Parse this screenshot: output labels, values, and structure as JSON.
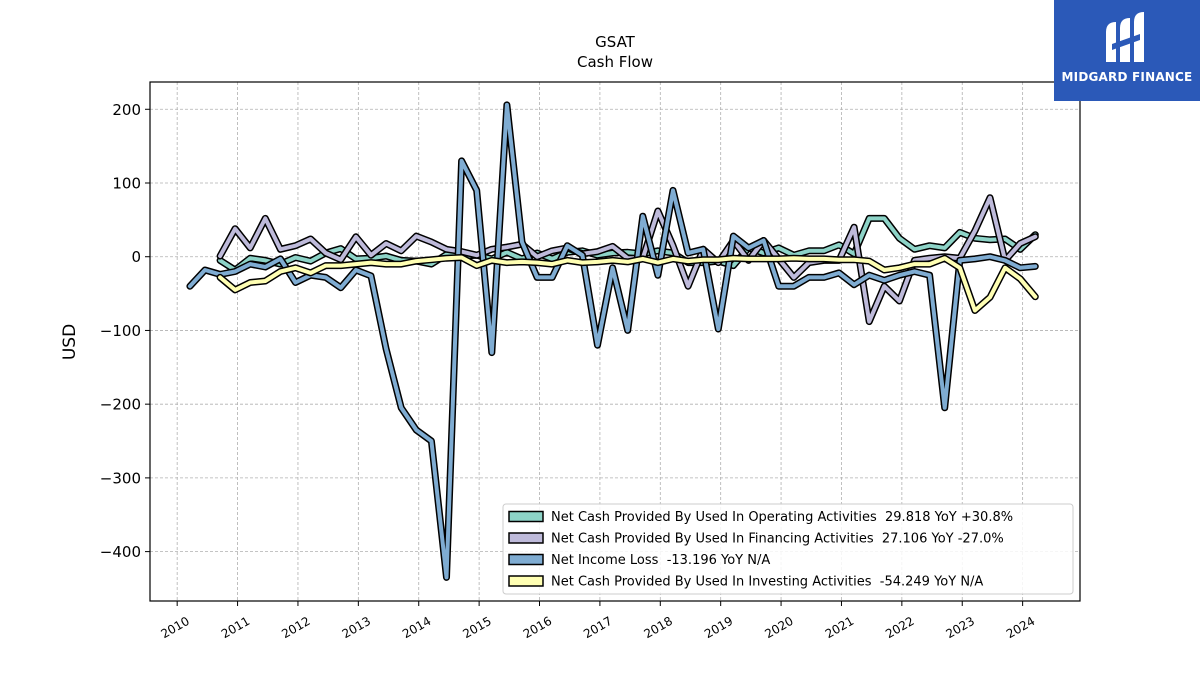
{
  "brand": {
    "name": "MIDGARD FINANCE",
    "colors": {
      "logo_bg": "#2b59b8",
      "logo_fg": "#ffffff"
    }
  },
  "chart_data": {
    "type": "line",
    "title": "GSAT",
    "subtitle": "Cash Flow",
    "xlabel": "",
    "ylabel": "USD",
    "xlim": [
      2009.55,
      2024.95
    ],
    "ylim": [
      -467,
      237
    ],
    "yticks": [
      200,
      100,
      0,
      -100,
      -200,
      -300,
      -400
    ],
    "ytick_labels": [
      "200",
      "100",
      "0",
      "−100",
      "−200",
      "−300",
      "−400"
    ],
    "xticks": [
      2010,
      2011,
      2012,
      2013,
      2014,
      2015,
      2016,
      2017,
      2018,
      2019,
      2020,
      2021,
      2022,
      2023,
      2024
    ],
    "xtick_labels": [
      "2010",
      "2011",
      "2012",
      "2013",
      "2014",
      "2015",
      "2016",
      "2017",
      "2018",
      "2019",
      "2020",
      "2021",
      "2022",
      "2023",
      "2024"
    ],
    "grid": true,
    "legend": {
      "position": "lower-right"
    },
    "series": [
      {
        "name": "Net Cash Provided By Used In Operating Activities  29.818 YoY +30.8%",
        "color": "#8dd3c7",
        "points": [
          [
            2010.71,
            -5
          ],
          [
            2010.96,
            -18
          ],
          [
            2011.21,
            -2
          ],
          [
            2011.46,
            -5
          ],
          [
            2011.71,
            -10
          ],
          [
            2011.96,
            -1
          ],
          [
            2012.21,
            -6
          ],
          [
            2012.46,
            5
          ],
          [
            2012.71,
            11
          ],
          [
            2012.96,
            -3
          ],
          [
            2013.21,
            -2
          ],
          [
            2013.46,
            1
          ],
          [
            2013.71,
            -5
          ],
          [
            2013.96,
            -6
          ],
          [
            2014.21,
            -10
          ],
          [
            2014.46,
            3
          ],
          [
            2014.71,
            1
          ],
          [
            2014.96,
            2
          ],
          [
            2015.21,
            -3
          ],
          [
            2015.46,
            6
          ],
          [
            2015.71,
            -3
          ],
          [
            2015.96,
            5
          ],
          [
            2016.21,
            -3
          ],
          [
            2016.46,
            6
          ],
          [
            2016.71,
            8
          ],
          [
            2016.96,
            2
          ],
          [
            2017.21,
            5
          ],
          [
            2017.46,
            6
          ],
          [
            2017.71,
            4
          ],
          [
            2017.96,
            8
          ],
          [
            2018.21,
            5
          ],
          [
            2018.46,
            -8
          ],
          [
            2018.71,
            -8
          ],
          [
            2018.96,
            -6
          ],
          [
            2019.21,
            -12
          ],
          [
            2019.46,
            12
          ],
          [
            2019.71,
            5
          ],
          [
            2019.96,
            12
          ],
          [
            2020.21,
            2
          ],
          [
            2020.46,
            8
          ],
          [
            2020.71,
            8
          ],
          [
            2020.96,
            16
          ],
          [
            2021.21,
            4
          ],
          [
            2021.46,
            52
          ],
          [
            2021.71,
            52
          ],
          [
            2021.96,
            25
          ],
          [
            2022.21,
            10
          ],
          [
            2022.46,
            15
          ],
          [
            2022.71,
            12
          ],
          [
            2022.96,
            33
          ],
          [
            2023.21,
            25
          ],
          [
            2023.46,
            23
          ],
          [
            2023.71,
            24
          ],
          [
            2023.96,
            10
          ],
          [
            2024.21,
            29.818
          ]
        ]
      },
      {
        "name": "Net Cash Provided By Used In Financing Activities  27.106 YoY -27.0%",
        "color": "#bebada",
        "points": [
          [
            2010.71,
            1
          ],
          [
            2010.96,
            38
          ],
          [
            2011.21,
            12
          ],
          [
            2011.46,
            52
          ],
          [
            2011.71,
            10
          ],
          [
            2011.96,
            15
          ],
          [
            2012.21,
            24
          ],
          [
            2012.46,
            5
          ],
          [
            2012.71,
            -4
          ],
          [
            2012.96,
            27
          ],
          [
            2013.21,
            2
          ],
          [
            2013.46,
            18
          ],
          [
            2013.71,
            8
          ],
          [
            2013.96,
            28
          ],
          [
            2014.21,
            20
          ],
          [
            2014.46,
            10
          ],
          [
            2014.71,
            7
          ],
          [
            2014.96,
            2
          ],
          [
            2015.21,
            10
          ],
          [
            2015.46,
            13
          ],
          [
            2015.71,
            17
          ],
          [
            2015.96,
            0
          ],
          [
            2016.21,
            8
          ],
          [
            2016.46,
            12
          ],
          [
            2016.71,
            4
          ],
          [
            2016.96,
            7
          ],
          [
            2017.21,
            14
          ],
          [
            2017.46,
            -2
          ],
          [
            2017.71,
            -2
          ],
          [
            2017.96,
            62
          ],
          [
            2018.21,
            15
          ],
          [
            2018.46,
            -40
          ],
          [
            2018.71,
            10
          ],
          [
            2018.96,
            -8
          ],
          [
            2019.21,
            22
          ],
          [
            2019.46,
            -5
          ],
          [
            2019.71,
            22
          ],
          [
            2019.96,
            -3
          ],
          [
            2020.21,
            -28
          ],
          [
            2020.46,
            -8
          ],
          [
            2020.71,
            -5
          ],
          [
            2020.96,
            -5
          ],
          [
            2021.21,
            40
          ],
          [
            2021.46,
            -88
          ],
          [
            2021.71,
            -40
          ],
          [
            2021.96,
            -60
          ],
          [
            2022.21,
            -5
          ],
          [
            2022.46,
            -2
          ],
          [
            2022.71,
            0
          ],
          [
            2022.96,
            -2
          ],
          [
            2023.21,
            35
          ],
          [
            2023.46,
            80
          ],
          [
            2023.71,
            -5
          ],
          [
            2023.96,
            18
          ],
          [
            2024.21,
            27.106
          ]
        ]
      },
      {
        "name": "Net Income Loss  -13.196 YoY N/A",
        "color": "#7facd2",
        "points": [
          [
            2010.21,
            -40
          ],
          [
            2010.46,
            -18
          ],
          [
            2010.71,
            -24
          ],
          [
            2010.96,
            -20
          ],
          [
            2011.21,
            -10
          ],
          [
            2011.46,
            -14
          ],
          [
            2011.71,
            -3
          ],
          [
            2011.96,
            -35
          ],
          [
            2012.21,
            -25
          ],
          [
            2012.46,
            -28
          ],
          [
            2012.71,
            -42
          ],
          [
            2012.96,
            -18
          ],
          [
            2013.21,
            -26
          ],
          [
            2013.46,
            -125
          ],
          [
            2013.71,
            -205
          ],
          [
            2013.96,
            -235
          ],
          [
            2014.21,
            -250
          ],
          [
            2014.46,
            -435
          ],
          [
            2014.71,
            130
          ],
          [
            2014.96,
            90
          ],
          [
            2015.21,
            -130
          ],
          [
            2015.46,
            206
          ],
          [
            2015.71,
            20
          ],
          [
            2015.96,
            -28
          ],
          [
            2016.21,
            -28
          ],
          [
            2016.46,
            15
          ],
          [
            2016.71,
            2
          ],
          [
            2016.96,
            -120
          ],
          [
            2017.21,
            -15
          ],
          [
            2017.46,
            -100
          ],
          [
            2017.71,
            55
          ],
          [
            2017.96,
            -25
          ],
          [
            2018.21,
            90
          ],
          [
            2018.46,
            5
          ],
          [
            2018.71,
            10
          ],
          [
            2018.96,
            -98
          ],
          [
            2019.21,
            28
          ],
          [
            2019.46,
            12
          ],
          [
            2019.71,
            22
          ],
          [
            2019.96,
            -40
          ],
          [
            2020.21,
            -40
          ],
          [
            2020.46,
            -28
          ],
          [
            2020.71,
            -28
          ],
          [
            2020.96,
            -22
          ],
          [
            2021.21,
            -38
          ],
          [
            2021.46,
            -25
          ],
          [
            2021.71,
            -32
          ],
          [
            2021.96,
            -25
          ],
          [
            2022.21,
            -20
          ],
          [
            2022.46,
            -25
          ],
          [
            2022.71,
            -205
          ],
          [
            2022.96,
            -5
          ],
          [
            2023.21,
            -3
          ],
          [
            2023.46,
            0
          ],
          [
            2023.71,
            -5
          ],
          [
            2023.96,
            -15
          ],
          [
            2024.21,
            -13.196
          ]
        ]
      },
      {
        "name": "Net Cash Provided By Used In Investing Activities  -54.249 YoY N/A",
        "color": "#ffffb3",
        "points": [
          [
            2010.71,
            -28
          ],
          [
            2010.96,
            -45
          ],
          [
            2011.21,
            -35
          ],
          [
            2011.46,
            -33
          ],
          [
            2011.71,
            -20
          ],
          [
            2011.96,
            -15
          ],
          [
            2012.21,
            -22
          ],
          [
            2012.46,
            -12
          ],
          [
            2012.71,
            -12
          ],
          [
            2012.96,
            -10
          ],
          [
            2013.21,
            -8
          ],
          [
            2013.46,
            -10
          ],
          [
            2013.71,
            -10
          ],
          [
            2013.96,
            -6
          ],
          [
            2014.21,
            -4
          ],
          [
            2014.46,
            -2
          ],
          [
            2014.71,
            -1
          ],
          [
            2014.96,
            -12
          ],
          [
            2015.21,
            -5
          ],
          [
            2015.46,
            -8
          ],
          [
            2015.71,
            -7
          ],
          [
            2015.96,
            -8
          ],
          [
            2016.21,
            -10
          ],
          [
            2016.46,
            -5
          ],
          [
            2016.71,
            -8
          ],
          [
            2016.96,
            -7
          ],
          [
            2017.21,
            -5
          ],
          [
            2017.46,
            -7
          ],
          [
            2017.71,
            -3
          ],
          [
            2017.96,
            -8
          ],
          [
            2018.21,
            -3
          ],
          [
            2018.46,
            -6
          ],
          [
            2018.71,
            -4
          ],
          [
            2018.96,
            -4
          ],
          [
            2019.21,
            -2
          ],
          [
            2019.46,
            -3
          ],
          [
            2019.71,
            -3
          ],
          [
            2019.96,
            -3
          ],
          [
            2020.21,
            -2
          ],
          [
            2020.46,
            -3
          ],
          [
            2020.71,
            -3
          ],
          [
            2020.96,
            -4
          ],
          [
            2021.21,
            -4
          ],
          [
            2021.46,
            -6
          ],
          [
            2021.71,
            -18
          ],
          [
            2021.96,
            -15
          ],
          [
            2022.21,
            -10
          ],
          [
            2022.46,
            -10
          ],
          [
            2022.71,
            -2
          ],
          [
            2022.96,
            -15
          ],
          [
            2023.21,
            -73
          ],
          [
            2023.46,
            -55
          ],
          [
            2023.71,
            -15
          ],
          [
            2023.96,
            -30
          ],
          [
            2024.21,
            -54.249
          ]
        ]
      }
    ]
  }
}
